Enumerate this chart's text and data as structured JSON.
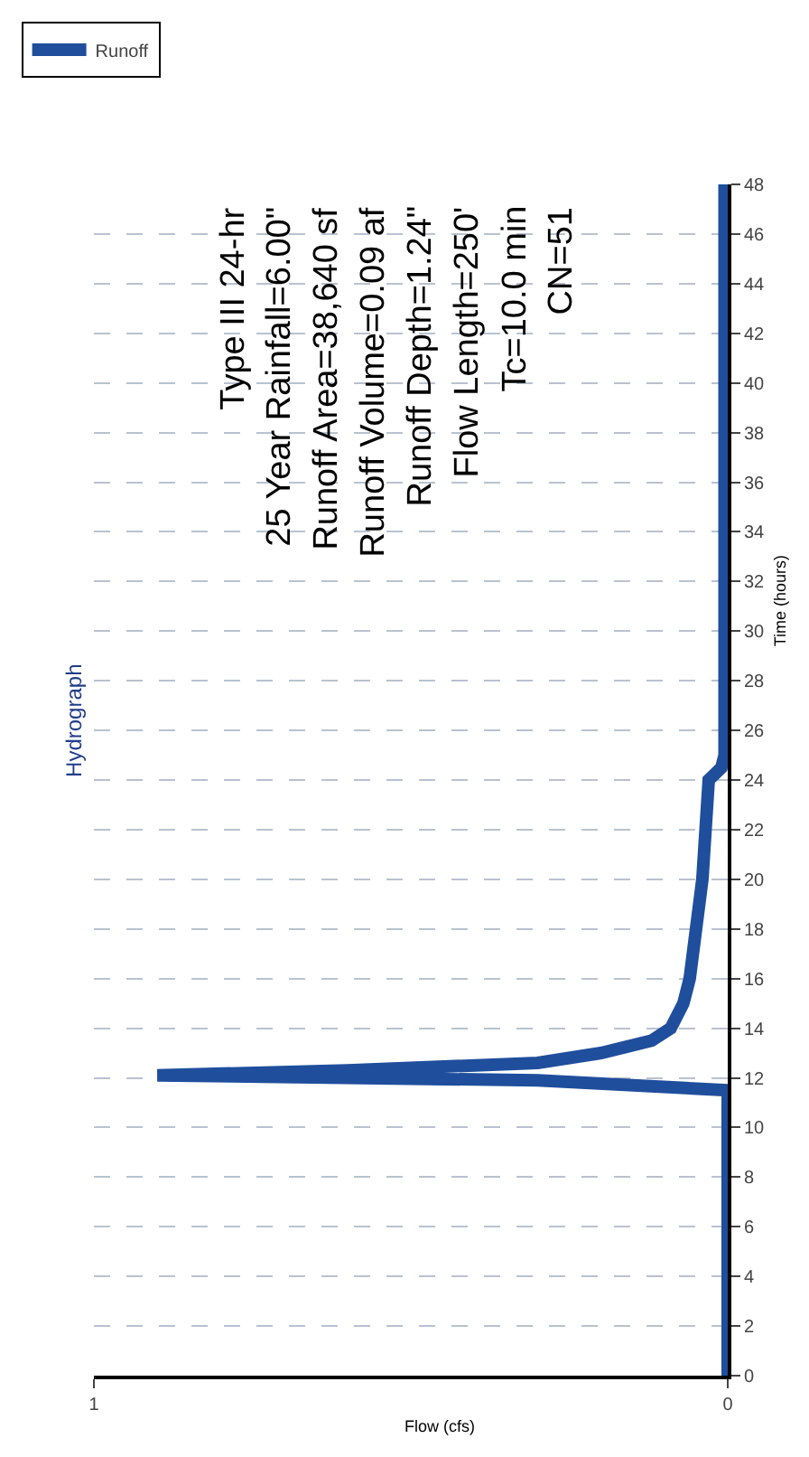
{
  "chart_data": {
    "type": "line",
    "title": "Hydrograph",
    "xlabel": "Flow (cfs)",
    "ylabel": "Time (hours)",
    "series": [
      {
        "name": "Runoff",
        "color": "#1f4e9c",
        "x": [
          0,
          0,
          0.3,
          0.9,
          0.6,
          0.3,
          0.2,
          0.12,
          0.09,
          0.07,
          0.06,
          0.05,
          0.04,
          0.035,
          0.03,
          0.01,
          0.005,
          0.005,
          0.005,
          0.005,
          0.005
        ],
        "values": [
          0,
          11.5,
          11.9,
          12.1,
          12.3,
          12.6,
          13,
          13.5,
          14,
          15,
          16,
          18,
          20,
          22,
          24,
          24.5,
          25,
          30,
          36,
          42,
          48
        ]
      }
    ],
    "xlim": [
      1,
      0
    ],
    "xticks": [
      0,
      1
    ],
    "ylim": [
      0,
      48
    ],
    "yticks": [
      0,
      2,
      4,
      6,
      8,
      10,
      12,
      14,
      16,
      18,
      20,
      22,
      24,
      26,
      28,
      30,
      32,
      34,
      36,
      38,
      40,
      42,
      44,
      46,
      48
    ],
    "grid": "y",
    "legend": "top left",
    "line_style": "solid",
    "annotations": [
      "Type III 24-hr",
      "25 Year Rainfall=6.00\"",
      "Runoff Area=38,640 sf",
      "Runoff Volume=0.09 af",
      "Runoff Depth=1.24\"",
      "Flow Length=250'",
      "Tc=10.0 min",
      "CN=51"
    ]
  }
}
